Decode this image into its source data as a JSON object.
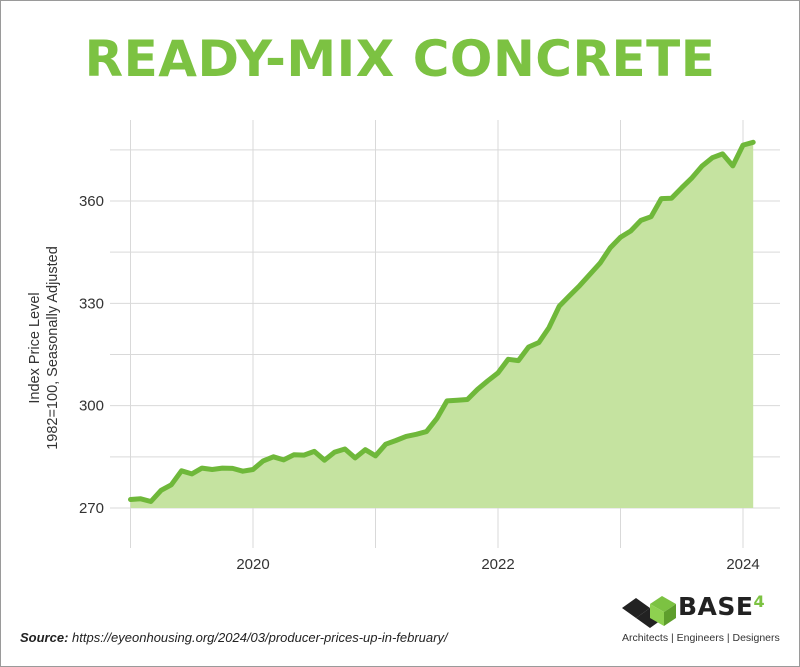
{
  "chart_data": {
    "type": "area",
    "title": "READY-MIX CONCRETE",
    "ylabel_line1": "Index Price Level",
    "ylabel_line2": "1982=100, Seasonally Adjusted",
    "xlabel": "",
    "x_ticks": [
      "2020",
      "2022",
      "2024"
    ],
    "y_ticks": [
      270,
      300,
      330,
      360
    ],
    "xlim": [
      "2019-01",
      "2024-04"
    ],
    "ylim": [
      270,
      378
    ],
    "grid": true,
    "colors": {
      "line": "#6fb83a",
      "fill": "#c5e3a0",
      "title": "#7cc242",
      "grid": "#d9d9d9"
    },
    "series": [
      {
        "x": [
          "2019-01",
          "2019-02",
          "2019-03",
          "2019-04",
          "2019-05",
          "2019-06",
          "2019-07",
          "2019-08",
          "2019-09",
          "2019-10",
          "2019-11",
          "2019-12",
          "2020-01",
          "2020-02",
          "2020-03",
          "2020-04",
          "2020-05",
          "2020-06",
          "2020-07",
          "2020-08",
          "2020-09",
          "2020-10",
          "2020-11",
          "2020-12",
          "2021-01",
          "2021-02",
          "2021-03",
          "2021-04",
          "2021-05",
          "2021-06",
          "2021-07",
          "2021-08",
          "2021-09",
          "2021-10",
          "2021-11",
          "2021-12",
          "2022-01",
          "2022-02",
          "2022-03",
          "2022-04",
          "2022-05",
          "2022-06",
          "2022-07",
          "2022-08",
          "2022-09",
          "2022-10",
          "2022-11",
          "2022-12",
          "2023-01",
          "2023-02",
          "2023-03",
          "2023-04",
          "2023-05",
          "2023-06",
          "2023-07",
          "2023-08",
          "2023-09",
          "2023-10",
          "2023-11",
          "2023-12",
          "2024-01",
          "2024-02"
        ],
        "values": [
          272.5,
          272.7,
          271.9,
          275.2,
          276.8,
          280.9,
          280.0,
          281.7,
          281.3,
          281.7,
          281.6,
          280.8,
          281.3,
          283.8,
          285.0,
          284.1,
          285.6,
          285.5,
          286.6,
          284.0,
          286.4,
          287.3,
          284.7,
          287.1,
          285.3,
          288.7,
          289.8,
          291.0,
          291.6,
          292.4,
          296.2,
          301.4,
          301.6,
          301.8,
          304.8,
          307.3,
          309.6,
          313.6,
          313.2,
          317.2,
          318.5,
          322.9,
          329.2,
          332.2,
          335.2,
          338.5,
          341.8,
          346.3,
          349.4,
          351.2,
          354.3,
          355.4,
          360.7,
          360.8,
          363.9,
          366.8,
          370.3,
          372.7,
          373.8,
          370.3,
          376.4,
          377.2
        ]
      }
    ]
  },
  "source": {
    "label": "Source:",
    "text": "https://eyeonhousing.org/2024/03/producer-prices-up-in-february/"
  },
  "logo": {
    "brand": "BASE",
    "brand_num": "4",
    "tagline": "Architects | Engineers | Designers"
  }
}
